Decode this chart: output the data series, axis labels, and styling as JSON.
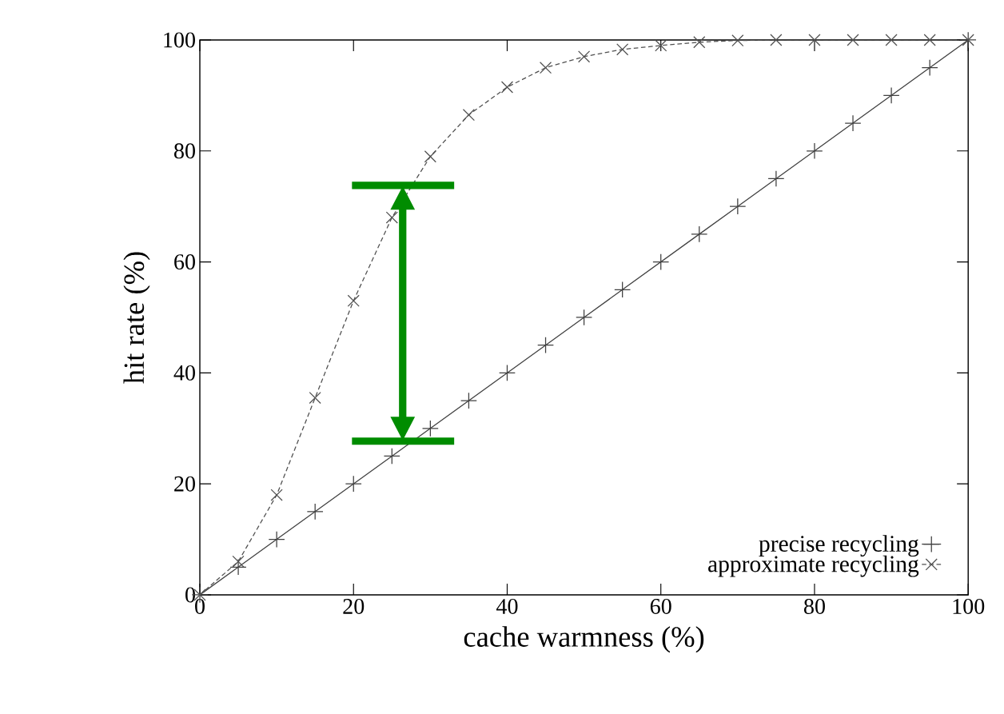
{
  "chart_data": {
    "type": "line",
    "xlabel": "cache warmness (%)",
    "ylabel": "hit rate (%)",
    "x": [
      0,
      5,
      10,
      15,
      20,
      25,
      30,
      35,
      40,
      45,
      50,
      55,
      60,
      65,
      70,
      75,
      80,
      85,
      90,
      95,
      100
    ],
    "series": [
      {
        "name": "precise recycling",
        "color": "#404040",
        "marker": "plus",
        "line_style": "solid",
        "values": [
          0,
          5,
          10,
          15,
          20,
          25,
          30,
          35,
          40,
          45,
          50,
          55,
          60,
          65,
          70,
          75,
          80,
          85,
          90,
          95,
          100
        ]
      },
      {
        "name": "approximate recycling",
        "color": "#505050",
        "marker": "cross",
        "line_style": "dashed",
        "values": [
          0,
          6,
          18,
          35.5,
          53,
          68,
          79,
          86.5,
          91.5,
          95,
          97,
          98.3,
          99,
          99.6,
          99.9,
          100,
          100,
          100,
          100,
          100,
          100
        ]
      }
    ],
    "xlim": [
      0,
      100
    ],
    "ylim": [
      0,
      100
    ],
    "xticks": [
      0,
      20,
      40,
      60,
      80,
      100
    ],
    "yticks": [
      0,
      20,
      40,
      60,
      80,
      100
    ],
    "grid": false,
    "legend": "bottom right"
  }
}
